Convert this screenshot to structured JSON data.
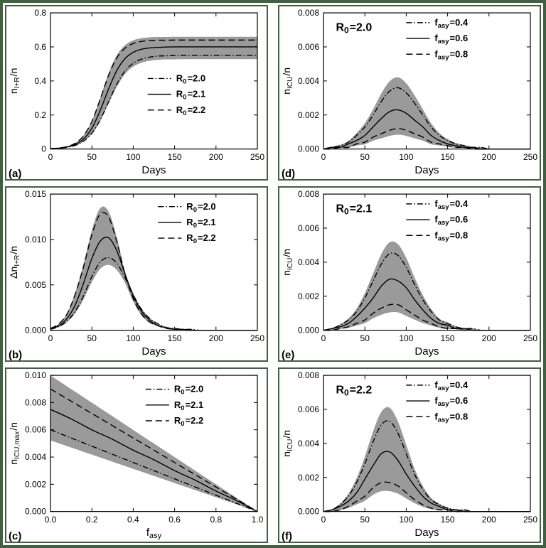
{
  "page": {
    "frame_color": "#415f41",
    "ink_color": "#000000",
    "band_color": "#9a9a9a",
    "background": "#ffffff"
  },
  "chart_data": [
    {
      "id": "a",
      "label": "(a)",
      "type": "line",
      "xlabel": "Days",
      "ylabel": {
        "pre": "n",
        "sub": "I+R",
        "post": "/n"
      },
      "xlim": [
        0,
        250
      ],
      "ylim": [
        0,
        0.8
      ],
      "xticks": [
        0,
        50,
        100,
        150,
        200,
        250
      ],
      "xtick_labels": [
        "0",
        "50",
        "100",
        "150",
        "200",
        "250"
      ],
      "yticks": [
        0,
        0.2,
        0.4,
        0.6,
        0.8
      ],
      "ytick_labels": [
        "0",
        "0.2",
        "0.4",
        "0.6",
        "0.8"
      ],
      "x": [
        0,
        10,
        20,
        30,
        40,
        50,
        60,
        70,
        80,
        90,
        100,
        110,
        120,
        130,
        140,
        150,
        160,
        170,
        180,
        190,
        200,
        210,
        220,
        230,
        240,
        250
      ],
      "series": [
        {
          "name": "R0=2.0",
          "style": "dashdot",
          "label": {
            "pre": "R",
            "sub": "0",
            "post": "=2.0"
          },
          "y": [
            0.002,
            0.004,
            0.01,
            0.021,
            0.046,
            0.092,
            0.17,
            0.275,
            0.379,
            0.458,
            0.504,
            0.528,
            0.54,
            0.546,
            0.548,
            0.549,
            0.55,
            0.55,
            0.55,
            0.55,
            0.55,
            0.55,
            0.55,
            0.55,
            0.55,
            0.55
          ]
        },
        {
          "name": "R0=2.1",
          "style": "solid",
          "label": {
            "pre": "R",
            "sub": "0",
            "post": "=2.1"
          },
          "y": [
            0.002,
            0.005,
            0.012,
            0.027,
            0.059,
            0.122,
            0.225,
            0.35,
            0.46,
            0.531,
            0.568,
            0.586,
            0.594,
            0.597,
            0.599,
            0.6,
            0.6,
            0.6,
            0.6,
            0.6,
            0.6,
            0.6,
            0.6,
            0.6,
            0.6,
            0.6
          ]
        },
        {
          "name": "R0=2.2",
          "style": "dashed",
          "label": {
            "pre": "R",
            "sub": "0",
            "post": "=2.2"
          },
          "y": [
            0.002,
            0.006,
            0.014,
            0.034,
            0.078,
            0.162,
            0.291,
            0.43,
            0.534,
            0.592,
            0.62,
            0.632,
            0.637,
            0.639,
            0.639,
            0.64,
            0.64,
            0.64,
            0.64,
            0.64,
            0.64,
            0.64,
            0.64,
            0.64,
            0.64,
            0.64
          ]
        }
      ],
      "band": {
        "upper_scale": 1.03,
        "lower_scale": 0.96
      },
      "legend": {
        "x": 0.47,
        "y": 0.44
      },
      "annotation": null
    },
    {
      "id": "d",
      "label": "(d)",
      "type": "line",
      "xlabel": "Days",
      "ylabel": {
        "pre": "n",
        "sub": "ICU",
        "post": "/n"
      },
      "xlim": [
        0,
        250
      ],
      "ylim": [
        0,
        0.008
      ],
      "xticks": [
        0,
        50,
        100,
        150,
        200,
        250
      ],
      "xtick_labels": [
        "0",
        "50",
        "100",
        "150",
        "200",
        "250"
      ],
      "yticks": [
        0,
        0.002,
        0.004,
        0.006,
        0.008
      ],
      "ytick_labels": [
        "0.000",
        "0.002",
        "0.004",
        "0.006",
        "0.008"
      ],
      "x": [
        0,
        10,
        20,
        30,
        40,
        50,
        60,
        70,
        80,
        90,
        100,
        110,
        120,
        130,
        140,
        150,
        160,
        170,
        180,
        190,
        200,
        210,
        220,
        230,
        240,
        250
      ],
      "series": [
        {
          "name": "fasy=0.4",
          "style": "dashdot",
          "label": {
            "pre": "f",
            "sub": "asy",
            "post": "=0.4"
          },
          "y": [
            0,
            0.0001,
            0.0002,
            0.0004,
            0.0008,
            0.0013,
            0.002,
            0.0028,
            0.0034,
            0.0036,
            0.0033,
            0.0027,
            0.002,
            0.0013,
            0.0008,
            0.0005,
            0.0003,
            0.0002,
            0.0001,
            0.0001,
            0,
            0,
            0,
            0,
            0,
            0
          ]
        },
        {
          "name": "fasy=0.6",
          "style": "solid",
          "label": {
            "pre": "f",
            "sub": "asy",
            "post": "=0.6"
          },
          "y": [
            0,
            0.0001,
            0.0001,
            0.0003,
            0.0005,
            0.0008,
            0.0013,
            0.0018,
            0.0022,
            0.0023,
            0.0021,
            0.0017,
            0.0013,
            0.0008,
            0.0005,
            0.0003,
            0.0002,
            0.0001,
            0.0001,
            0,
            0,
            0,
            0,
            0,
            0,
            0
          ]
        },
        {
          "name": "fasy=0.8",
          "style": "dashed",
          "label": {
            "pre": "f",
            "sub": "asy",
            "post": "=0.8"
          },
          "y": [
            0,
            0,
            0.0001,
            0.0001,
            0.0003,
            0.0004,
            0.0007,
            0.0009,
            0.0011,
            0.0012,
            0.0011,
            0.0009,
            0.0007,
            0.0004,
            0.0003,
            0.0002,
            0.0001,
            0.0001,
            0,
            0,
            0,
            0,
            0,
            0,
            0,
            0
          ]
        }
      ],
      "band": {
        "upper_scale": 1.17,
        "lower_scale": 0.7
      },
      "legend": {
        "x": 0.4,
        "y": 0.03
      },
      "annotation": {
        "pre": "R",
        "sub": "0",
        "post": "=2.0",
        "x": 0.06,
        "y": 0.06
      }
    },
    {
      "id": "b",
      "label": "(b)",
      "type": "line",
      "xlabel": "Days",
      "ylabel": {
        "pre": "Δn",
        "sub": "I+R",
        "post": "/n"
      },
      "xlim": [
        0,
        250
      ],
      "ylim": [
        0,
        0.015
      ],
      "xticks": [
        0,
        50,
        100,
        150,
        200,
        250
      ],
      "xtick_labels": [
        "0",
        "50",
        "100",
        "150",
        "200",
        "250"
      ],
      "yticks": [
        0,
        0.005,
        0.01,
        0.015
      ],
      "ytick_labels": [
        "0.000",
        "0.005",
        "0.010",
        "0.015"
      ],
      "x": [
        0,
        10,
        20,
        30,
        40,
        50,
        60,
        70,
        80,
        90,
        100,
        110,
        120,
        130,
        140,
        150,
        160,
        170,
        180,
        190,
        200,
        210,
        220,
        230,
        240,
        250
      ],
      "series": [
        {
          "name": "R0=2.0",
          "style": "dashdot",
          "label": {
            "pre": "R",
            "sub": "0",
            "post": "=2.0"
          },
          "y": [
            0.0001,
            0.0004,
            0.001,
            0.0021,
            0.0038,
            0.0059,
            0.0075,
            0.008,
            0.0074,
            0.0058,
            0.0039,
            0.0023,
            0.0013,
            0.0007,
            0.0003,
            0.0002,
            0.0001,
            0.0001,
            0,
            0,
            0,
            0,
            0,
            0,
            0,
            0
          ]
        },
        {
          "name": "R0=2.1",
          "style": "solid",
          "label": {
            "pre": "R",
            "sub": "0",
            "post": "=2.1"
          },
          "y": [
            0.0002,
            0.0005,
            0.0013,
            0.0028,
            0.0052,
            0.0079,
            0.0098,
            0.0102,
            0.0088,
            0.0062,
            0.0038,
            0.0021,
            0.0011,
            0.0005,
            0.0003,
            0.0001,
            0.0001,
            0,
            0,
            0,
            0,
            0,
            0,
            0,
            0,
            0
          ]
        },
        {
          "name": "R0=2.2",
          "style": "dashed",
          "label": {
            "pre": "R",
            "sub": "0",
            "post": "=2.2"
          },
          "y": [
            0.0002,
            0.0007,
            0.0018,
            0.004,
            0.007,
            0.0105,
            0.0128,
            0.0125,
            0.0098,
            0.0062,
            0.0035,
            0.0018,
            0.0009,
            0.0005,
            0.0002,
            0.0001,
            0,
            0,
            0,
            0,
            0,
            0,
            0,
            0,
            0,
            0
          ]
        }
      ],
      "band": {
        "upper_scale": 1.05,
        "lower_scale": 0.9
      },
      "legend": {
        "x": 0.52,
        "y": 0.05
      },
      "annotation": null
    },
    {
      "id": "e",
      "label": "(e)",
      "type": "line",
      "xlabel": "Days",
      "ylabel": {
        "pre": "n",
        "sub": "ICU",
        "post": "/n"
      },
      "xlim": [
        0,
        250
      ],
      "ylim": [
        0,
        0.008
      ],
      "xticks": [
        0,
        50,
        100,
        150,
        200,
        250
      ],
      "xtick_labels": [
        "0",
        "50",
        "100",
        "150",
        "200",
        "250"
      ],
      "yticks": [
        0,
        0.002,
        0.004,
        0.006,
        0.008
      ],
      "ytick_labels": [
        "0.000",
        "0.002",
        "0.004",
        "0.006",
        "0.008"
      ],
      "x": [
        0,
        10,
        20,
        30,
        40,
        50,
        60,
        70,
        80,
        90,
        100,
        110,
        120,
        130,
        140,
        150,
        160,
        170,
        180,
        190,
        200,
        210,
        220,
        230,
        240,
        250
      ],
      "series": [
        {
          "name": "fasy=0.4",
          "style": "dashdot",
          "label": {
            "pre": "f",
            "sub": "asy",
            "post": "=0.4"
          },
          "y": [
            0,
            0.0001,
            0.0003,
            0.0006,
            0.0011,
            0.0019,
            0.0029,
            0.0039,
            0.0045,
            0.0044,
            0.0037,
            0.0027,
            0.0018,
            0.0011,
            0.0006,
            0.0004,
            0.0002,
            0.0001,
            0.0001,
            0,
            0,
            0,
            0,
            0,
            0,
            0
          ]
        },
        {
          "name": "fasy=0.6",
          "style": "solid",
          "label": {
            "pre": "f",
            "sub": "asy",
            "post": "=0.6"
          },
          "y": [
            0,
            0.0001,
            0.0002,
            0.0004,
            0.0008,
            0.0013,
            0.0019,
            0.0026,
            0.003,
            0.0029,
            0.0025,
            0.0018,
            0.0012,
            0.0007,
            0.0004,
            0.0003,
            0.0001,
            0.0001,
            0,
            0,
            0,
            0,
            0,
            0,
            0,
            0
          ]
        },
        {
          "name": "fasy=0.8",
          "style": "dashed",
          "label": {
            "pre": "f",
            "sub": "asy",
            "post": "=0.8"
          },
          "y": [
            0,
            0,
            0.0001,
            0.0002,
            0.0004,
            0.0006,
            0.001,
            0.0013,
            0.0015,
            0.0015,
            0.0012,
            0.0009,
            0.0006,
            0.0004,
            0.0002,
            0.0001,
            0.0001,
            0,
            0,
            0,
            0,
            0,
            0,
            0,
            0,
            0
          ]
        }
      ],
      "band": {
        "upper_scale": 1.15,
        "lower_scale": 0.7
      },
      "legend": {
        "x": 0.4,
        "y": 0.03
      },
      "annotation": {
        "pre": "R",
        "sub": "0",
        "post": "=2.1",
        "x": 0.06,
        "y": 0.06
      }
    },
    {
      "id": "c",
      "label": "(c)",
      "type": "line",
      "xlabel": {
        "pre": "f",
        "sub": "asy",
        "post": ""
      },
      "ylabel": {
        "pre": "n",
        "sub": "ICU,max",
        "post": "/n"
      },
      "xlim": [
        0,
        1.0
      ],
      "ylim": [
        0,
        0.01
      ],
      "xticks": [
        0,
        0.2,
        0.4,
        0.6,
        0.8,
        1.0
      ],
      "xtick_labels": [
        "0.0",
        "0.2",
        "0.4",
        "0.6",
        "0.8",
        "1.0"
      ],
      "yticks": [
        0,
        0.002,
        0.004,
        0.006,
        0.008,
        0.01
      ],
      "ytick_labels": [
        "0.000",
        "0.002",
        "0.004",
        "0.006",
        "0.008",
        "0.010"
      ],
      "x": [
        0,
        0.1,
        0.2,
        0.3,
        0.4,
        0.5,
        0.6,
        0.7,
        0.8,
        0.9,
        1.0
      ],
      "series": [
        {
          "name": "R0=2.0",
          "style": "dashdot",
          "label": {
            "pre": "R",
            "sub": "0",
            "post": "=2.0"
          },
          "y": [
            0.006,
            0.0054,
            0.0048,
            0.0042,
            0.0036,
            0.003,
            0.0024,
            0.0018,
            0.0012,
            0.0006,
            0
          ]
        },
        {
          "name": "R0=2.1",
          "style": "solid",
          "label": {
            "pre": "R",
            "sub": "0",
            "post": "=2.1"
          },
          "y": [
            0.0075,
            0.0068,
            0.006,
            0.0053,
            0.0045,
            0.0038,
            0.003,
            0.0023,
            0.0015,
            0.0008,
            0
          ]
        },
        {
          "name": "R0=2.2",
          "style": "dashed",
          "label": {
            "pre": "R",
            "sub": "0",
            "post": "=2.2"
          },
          "y": [
            0.009,
            0.0081,
            0.0072,
            0.0063,
            0.0054,
            0.0045,
            0.0036,
            0.0027,
            0.0018,
            0.0009,
            0
          ]
        }
      ],
      "band": {
        "upper_scale": 1.11,
        "lower_scale": 0.87
      },
      "legend": {
        "x": 0.46,
        "y": 0.06
      },
      "annotation": null
    },
    {
      "id": "f",
      "label": "(f)",
      "type": "line",
      "xlabel": "Days",
      "ylabel": {
        "pre": "n",
        "sub": "ICU",
        "post": "/n"
      },
      "xlim": [
        0,
        250
      ],
      "ylim": [
        0,
        0.008
      ],
      "xticks": [
        0,
        50,
        100,
        150,
        200,
        250
      ],
      "xtick_labels": [
        "0",
        "50",
        "100",
        "150",
        "200",
        "250"
      ],
      "yticks": [
        0,
        0.002,
        0.004,
        0.006,
        0.008
      ],
      "ytick_labels": [
        "0.000",
        "0.002",
        "0.004",
        "0.006",
        "0.008"
      ],
      "x": [
        0,
        10,
        20,
        30,
        40,
        50,
        60,
        70,
        80,
        90,
        100,
        110,
        120,
        130,
        140,
        150,
        160,
        170,
        180,
        190,
        200,
        210,
        220,
        230,
        240,
        250
      ],
      "series": [
        {
          "name": "fasy=0.4",
          "style": "dashdot",
          "label": {
            "pre": "f",
            "sub": "asy",
            "post": "=0.4"
          },
          "y": [
            0,
            0.0001,
            0.0004,
            0.0009,
            0.0017,
            0.0028,
            0.0041,
            0.0051,
            0.0053,
            0.0046,
            0.0034,
            0.0022,
            0.0013,
            0.0007,
            0.0004,
            0.0002,
            0.0001,
            0.0001,
            0,
            0,
            0,
            0,
            0,
            0,
            0,
            0
          ]
        },
        {
          "name": "fasy=0.6",
          "style": "solid",
          "label": {
            "pre": "f",
            "sub": "asy",
            "post": "=0.6"
          },
          "y": [
            0,
            0.0001,
            0.0003,
            0.0006,
            0.0011,
            0.0019,
            0.0027,
            0.0034,
            0.0035,
            0.003,
            0.0022,
            0.0015,
            0.0009,
            0.0005,
            0.0003,
            0.0001,
            0.0001,
            0,
            0,
            0,
            0,
            0,
            0,
            0,
            0,
            0
          ]
        },
        {
          "name": "fasy=0.8",
          "style": "dashed",
          "label": {
            "pre": "f",
            "sub": "asy",
            "post": "=0.8"
          },
          "y": [
            0,
            0,
            0.0001,
            0.0003,
            0.0006,
            0.0009,
            0.0014,
            0.0017,
            0.0017,
            0.0015,
            0.0011,
            0.0007,
            0.0004,
            0.0002,
            0.0001,
            0.0001,
            0,
            0,
            0,
            0,
            0,
            0,
            0,
            0,
            0,
            0
          ]
        }
      ],
      "band": {
        "upper_scale": 1.15,
        "lower_scale": 0.7
      },
      "legend": {
        "x": 0.4,
        "y": 0.03
      },
      "annotation": {
        "pre": "R",
        "sub": "0",
        "post": "=2.2",
        "x": 0.06,
        "y": 0.06
      }
    }
  ]
}
